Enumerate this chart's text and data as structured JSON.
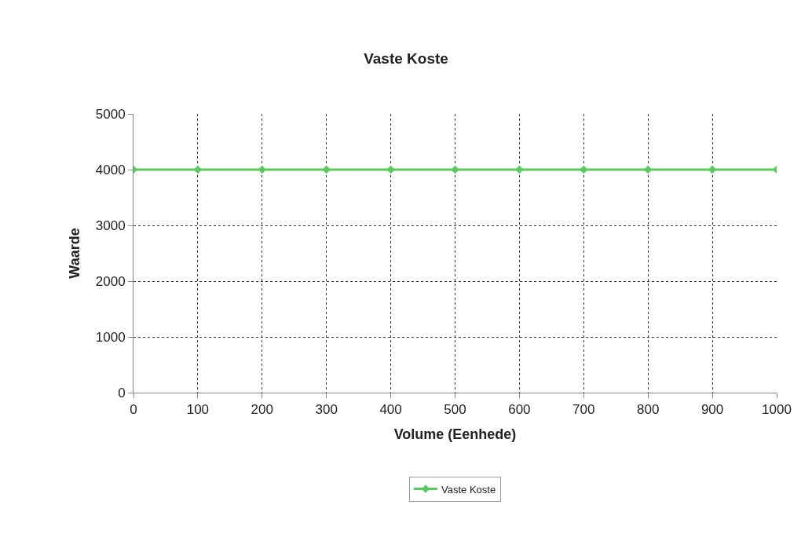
{
  "chart_data": {
    "type": "line",
    "title": "Vaste Koste",
    "xlabel": "Volume (Eenhede)",
    "ylabel": "Waarde",
    "x": [
      0,
      100,
      200,
      300,
      400,
      500,
      600,
      700,
      800,
      900,
      1000
    ],
    "series": [
      {
        "name": "Vaste Koste",
        "color": "#5cc860",
        "values": [
          4000,
          4000,
          4000,
          4000,
          4000,
          4000,
          4000,
          4000,
          4000,
          4000,
          4000
        ]
      }
    ],
    "xlim": [
      0,
      1000
    ],
    "xticks": [
      0,
      100,
      200,
      300,
      400,
      500,
      600,
      700,
      800,
      900,
      1000
    ],
    "ylim": [
      0,
      5000
    ],
    "yticks": [
      0,
      1000,
      2000,
      3000,
      4000,
      5000
    ],
    "grid": true,
    "legend": "bottom",
    "marker": "diamond",
    "line_style": "solid"
  }
}
